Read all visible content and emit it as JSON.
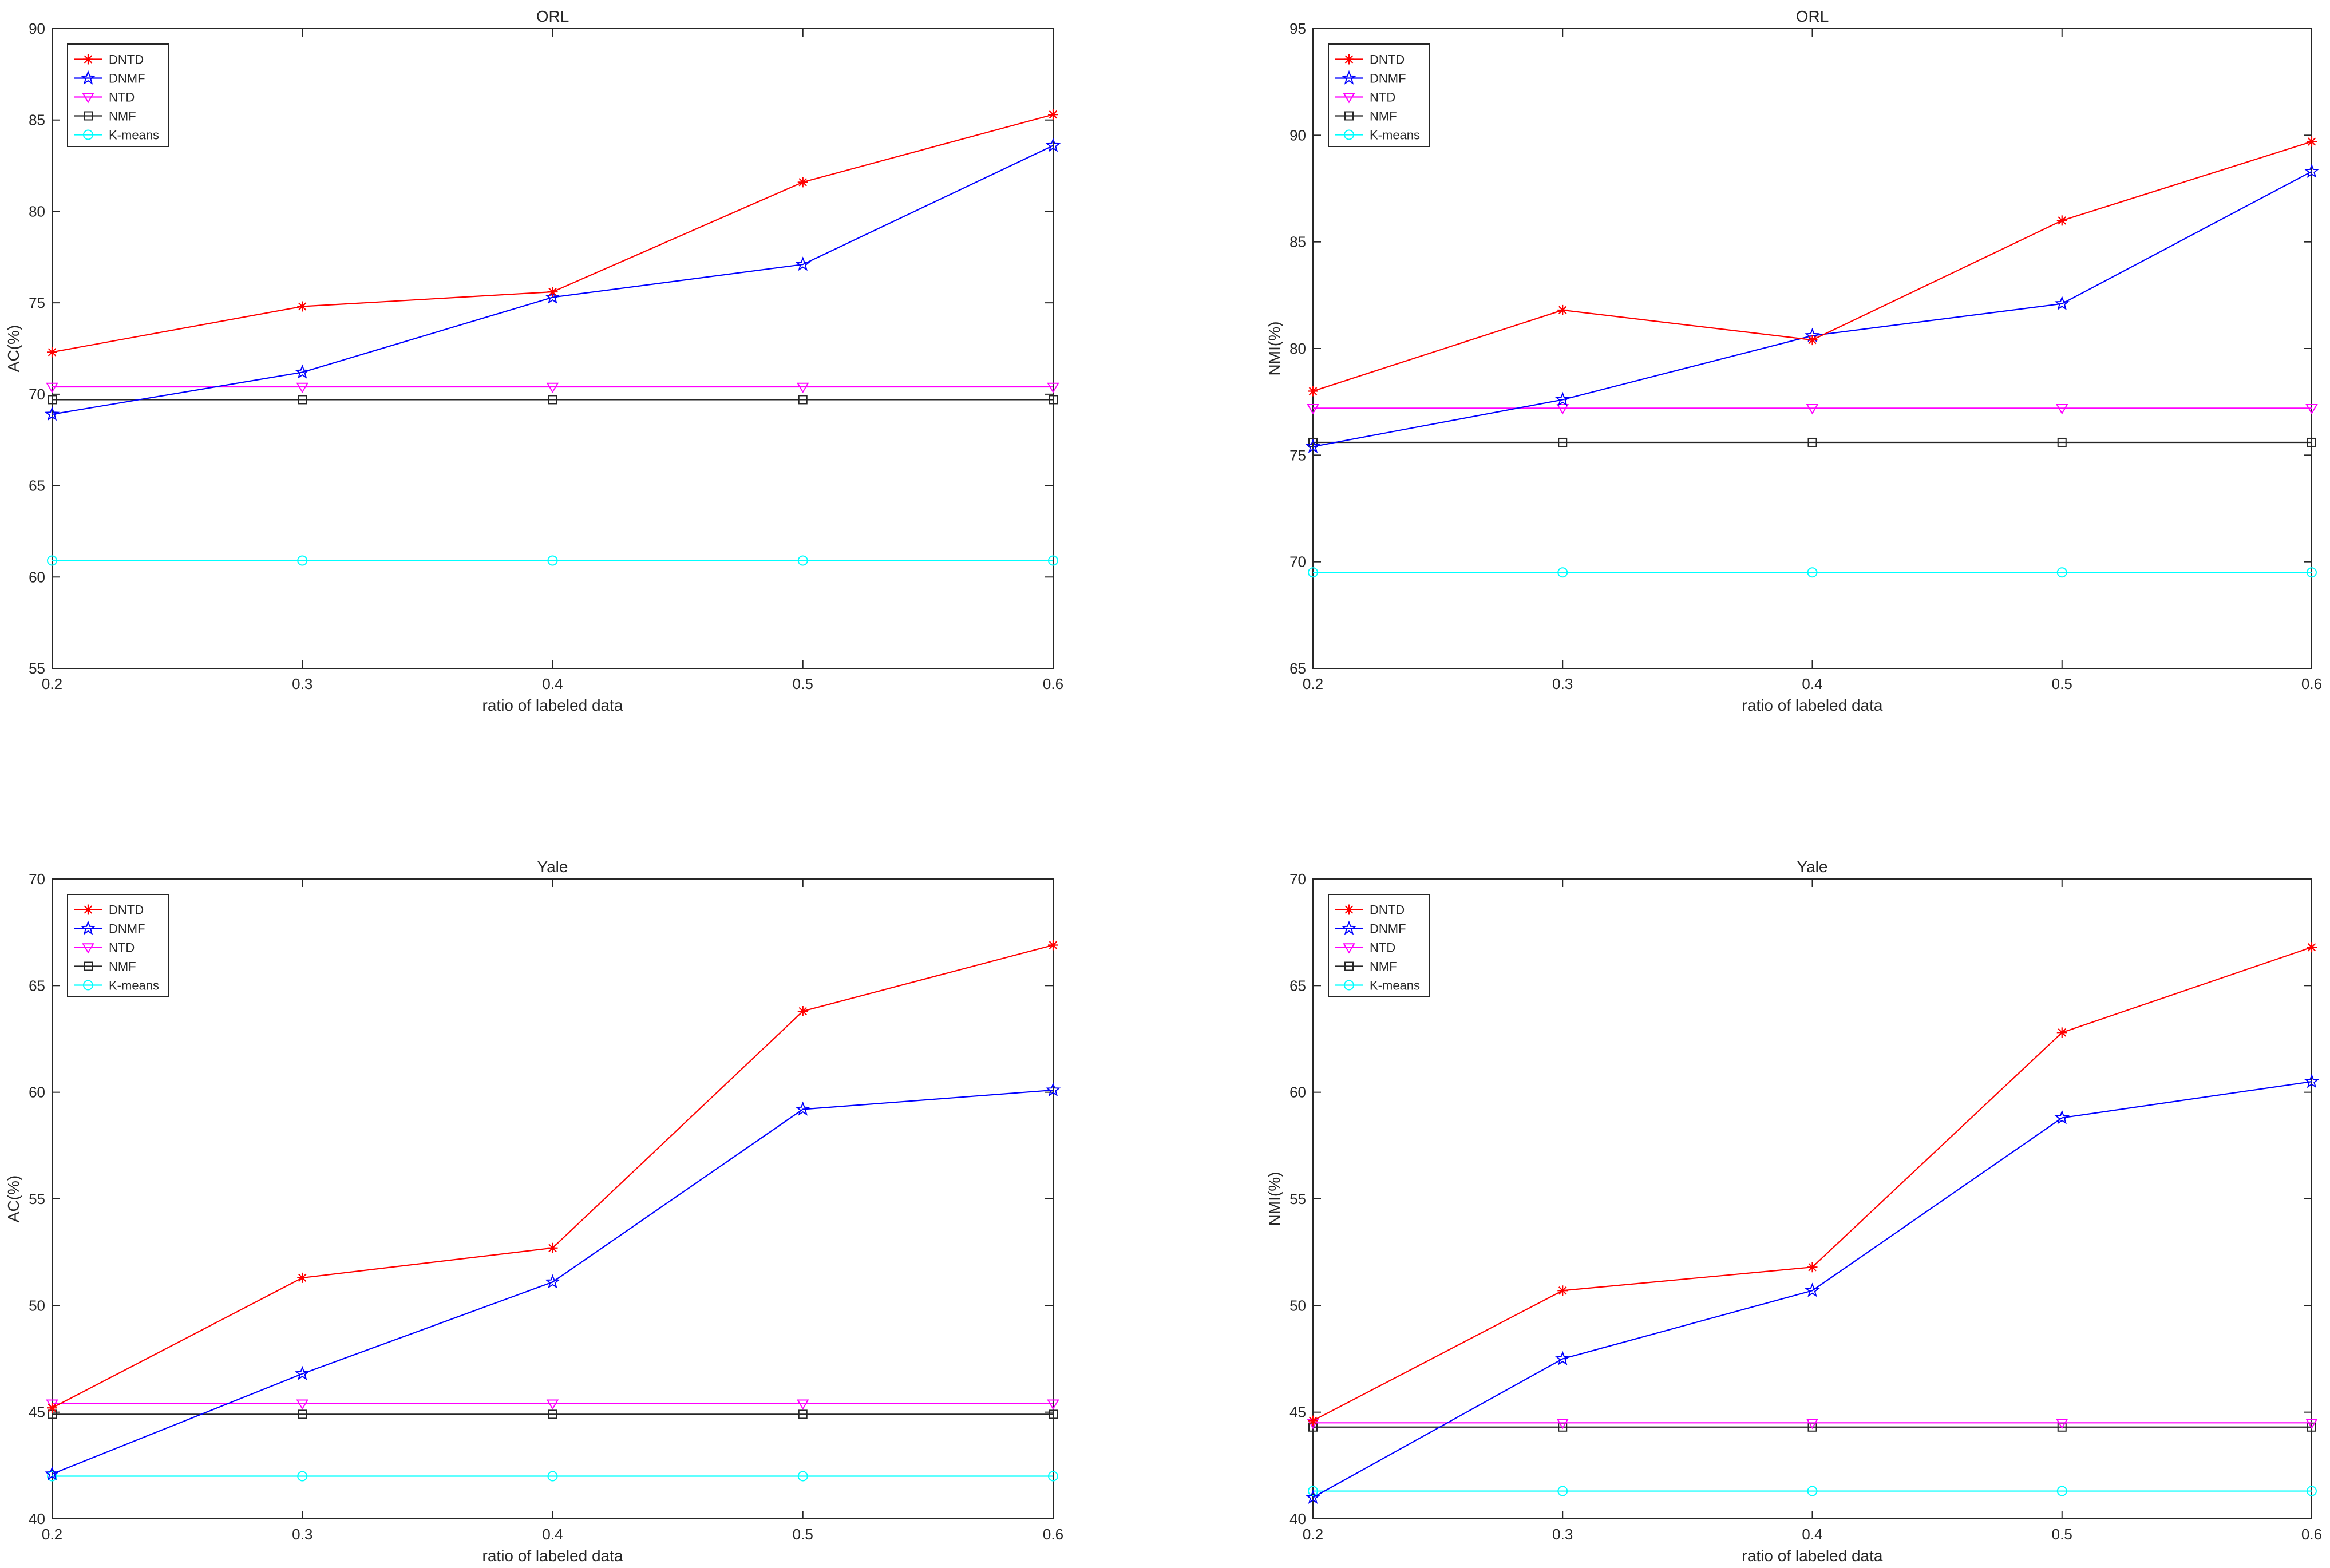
{
  "chart_data": [
    {
      "type": "line",
      "title": "ORL",
      "xlabel": "ratio of labeled data",
      "ylabel": "AC(%)",
      "x": [
        0.2,
        0.3,
        0.4,
        0.5,
        0.6
      ],
      "xticks": [
        "0.2",
        "0.3",
        "0.4",
        "0.5",
        "0.6"
      ],
      "xlim": [
        0.2,
        0.6
      ],
      "ylim": [
        55,
        90
      ],
      "yticks": [
        55,
        60,
        65,
        70,
        75,
        80,
        85,
        90
      ],
      "legend_position": "top-left",
      "series": [
        {
          "name": "DNTD",
          "color": "#ff0000",
          "marker": "asterisk",
          "values": [
            72.3,
            74.8,
            75.6,
            81.6,
            85.3
          ]
        },
        {
          "name": "DNMF",
          "color": "#0000ff",
          "marker": "pentagram",
          "values": [
            68.9,
            71.2,
            75.3,
            77.1,
            83.6
          ]
        },
        {
          "name": "NTD",
          "color": "#ff00ff",
          "marker": "triangle-down",
          "values": [
            70.4,
            70.4,
            70.4,
            70.4,
            70.4
          ]
        },
        {
          "name": "NMF",
          "color": "#262626",
          "marker": "square",
          "values": [
            69.7,
            69.7,
            69.7,
            69.7,
            69.7
          ]
        },
        {
          "name": "K-means",
          "color": "#00ffff",
          "marker": "circle",
          "values": [
            60.9,
            60.9,
            60.9,
            60.9,
            60.9
          ]
        }
      ]
    },
    {
      "type": "line",
      "title": "ORL",
      "xlabel": "ratio of labeled data",
      "ylabel": "NMI(%)",
      "x": [
        0.2,
        0.3,
        0.4,
        0.5,
        0.6
      ],
      "xticks": [
        "0.2",
        "0.3",
        "0.4",
        "0.5",
        "0.6"
      ],
      "xlim": [
        0.2,
        0.6
      ],
      "ylim": [
        65,
        95
      ],
      "yticks": [
        65,
        70,
        75,
        80,
        85,
        90,
        95
      ],
      "legend_position": "top-left",
      "series": [
        {
          "name": "DNTD",
          "color": "#ff0000",
          "marker": "asterisk",
          "values": [
            78.0,
            81.8,
            80.4,
            86.0,
            89.7
          ]
        },
        {
          "name": "DNMF",
          "color": "#0000ff",
          "marker": "pentagram",
          "values": [
            75.4,
            77.6,
            80.6,
            82.1,
            88.3
          ]
        },
        {
          "name": "NTD",
          "color": "#ff00ff",
          "marker": "triangle-down",
          "values": [
            77.2,
            77.2,
            77.2,
            77.2,
            77.2
          ]
        },
        {
          "name": "NMF",
          "color": "#262626",
          "marker": "square",
          "values": [
            75.6,
            75.6,
            75.6,
            75.6,
            75.6
          ]
        },
        {
          "name": "K-means",
          "color": "#00ffff",
          "marker": "circle",
          "values": [
            69.5,
            69.5,
            69.5,
            69.5,
            69.5
          ]
        }
      ]
    },
    {
      "type": "line",
      "title": "Yale",
      "xlabel": "ratio of labeled data",
      "ylabel": "AC(%)",
      "x": [
        0.2,
        0.3,
        0.4,
        0.5,
        0.6
      ],
      "xticks": [
        "0.2",
        "0.3",
        "0.4",
        "0.5",
        "0.6"
      ],
      "xlim": [
        0.2,
        0.6
      ],
      "ylim": [
        40,
        70
      ],
      "yticks": [
        40,
        45,
        50,
        55,
        60,
        65,
        70
      ],
      "legend_position": "top-left",
      "series": [
        {
          "name": "DNTD",
          "color": "#ff0000",
          "marker": "asterisk",
          "values": [
            45.2,
            51.3,
            52.7,
            63.8,
            66.9
          ]
        },
        {
          "name": "DNMF",
          "color": "#0000ff",
          "marker": "pentagram",
          "values": [
            42.1,
            46.8,
            51.1,
            59.2,
            60.1
          ]
        },
        {
          "name": "NTD",
          "color": "#ff00ff",
          "marker": "triangle-down",
          "values": [
            45.4,
            45.4,
            45.4,
            45.4,
            45.4
          ]
        },
        {
          "name": "NMF",
          "color": "#262626",
          "marker": "square",
          "values": [
            44.9,
            44.9,
            44.9,
            44.9,
            44.9
          ]
        },
        {
          "name": "K-means",
          "color": "#00ffff",
          "marker": "circle",
          "values": [
            42.0,
            42.0,
            42.0,
            42.0,
            42.0
          ]
        }
      ]
    },
    {
      "type": "line",
      "title": "Yale",
      "xlabel": "ratio of labeled data",
      "ylabel": "NMI(%)",
      "x": [
        0.2,
        0.3,
        0.4,
        0.5,
        0.6
      ],
      "xticks": [
        "0.2",
        "0.3",
        "0.4",
        "0.5",
        "0.6"
      ],
      "xlim": [
        0.2,
        0.6
      ],
      "ylim": [
        40,
        70
      ],
      "yticks": [
        40,
        45,
        50,
        55,
        60,
        65,
        70
      ],
      "legend_position": "top-left",
      "series": [
        {
          "name": "DNTD",
          "color": "#ff0000",
          "marker": "asterisk",
          "values": [
            44.6,
            50.7,
            51.8,
            62.8,
            66.8
          ]
        },
        {
          "name": "DNMF",
          "color": "#0000ff",
          "marker": "pentagram",
          "values": [
            41.0,
            47.5,
            50.7,
            58.8,
            60.5
          ]
        },
        {
          "name": "NTD",
          "color": "#ff00ff",
          "marker": "triangle-down",
          "values": [
            44.5,
            44.5,
            44.5,
            44.5,
            44.5
          ]
        },
        {
          "name": "NMF",
          "color": "#262626",
          "marker": "square",
          "values": [
            44.3,
            44.3,
            44.3,
            44.3,
            44.3
          ]
        },
        {
          "name": "K-means",
          "color": "#00ffff",
          "marker": "circle",
          "values": [
            41.3,
            41.3,
            41.3,
            41.3,
            41.3
          ]
        }
      ]
    }
  ]
}
